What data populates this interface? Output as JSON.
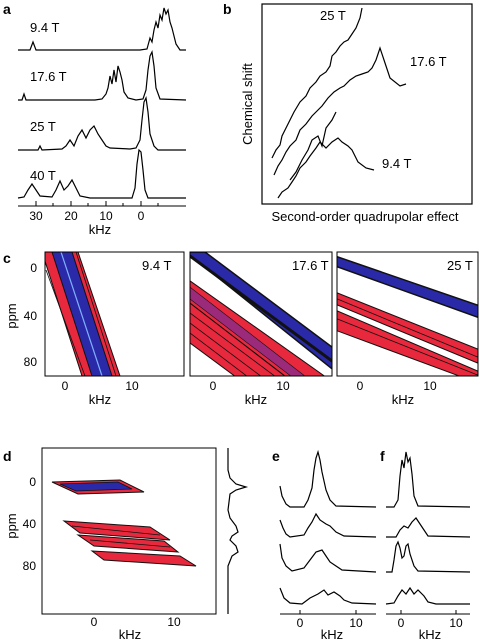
{
  "panel_a": {
    "letter": "a",
    "field_labels": [
      "9.4 T",
      "17.6 T",
      "25 T",
      "40 T"
    ],
    "x_ticks": [
      "30",
      "20",
      "10",
      "0"
    ],
    "x_label": "kHz"
  },
  "panel_b": {
    "letter": "b",
    "y_label": "Chemical shift",
    "x_label": "Second-order quadrupolar effect",
    "field_labels": [
      "25 T",
      "17.6 T",
      "9.4 T"
    ]
  },
  "panel_c": {
    "letter": "c",
    "y_label": "ppm",
    "y_ticks": [
      "0",
      "40",
      "80"
    ],
    "x_ticks": [
      "0",
      "10"
    ],
    "x_label": "kHz",
    "subpanels": [
      {
        "field": "9.4 T"
      },
      {
        "field": "17.6 T"
      },
      {
        "field": "25 T"
      }
    ]
  },
  "panel_d": {
    "letter": "d",
    "y_label": "ppm",
    "y_ticks": [
      "0",
      "40",
      "80"
    ],
    "x_ticks": [
      "0",
      "10"
    ],
    "x_label": "kHz"
  },
  "panel_e": {
    "letter": "e",
    "x_ticks": [
      "0",
      "10"
    ],
    "x_label": "kHz"
  },
  "panel_f": {
    "letter": "f",
    "x_ticks": [
      "0",
      "10"
    ],
    "x_label": "kHz"
  },
  "colors": {
    "red": "#e8283c",
    "blue": "#2a2aa8",
    "dark": "#111111"
  }
}
